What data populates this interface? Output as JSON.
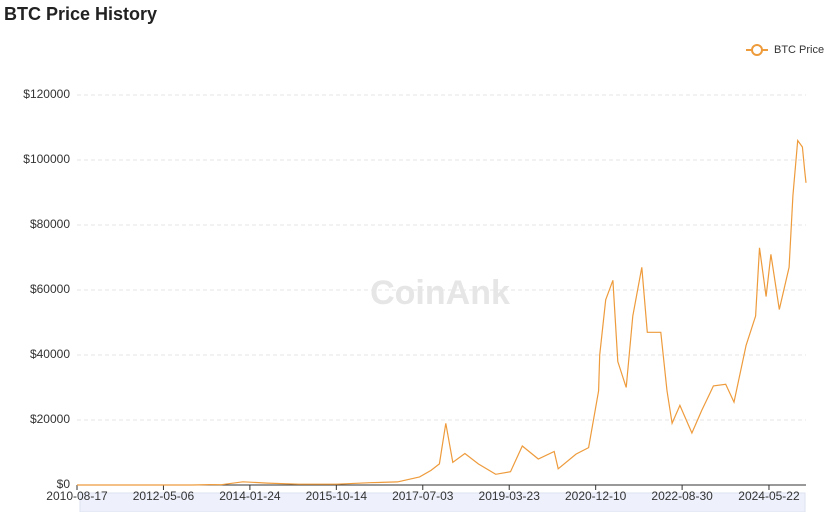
{
  "chart_data": {
    "type": "line",
    "title": "BTC Price History",
    "watermark": "CoinAnk",
    "legend": "top-right",
    "grid": true,
    "x": [
      "2010-08-17",
      "2011-06-08",
      "2011-12-01",
      "2012-06-01",
      "2012-12-01",
      "2013-04-10",
      "2013-07-01",
      "2013-12-04",
      "2014-06-01",
      "2015-01-14",
      "2015-10-14",
      "2016-06-15",
      "2016-12-31",
      "2017-06-10",
      "2017-09-01",
      "2017-11-01",
      "2017-12-17",
      "2018-02-06",
      "2018-05-05",
      "2018-08-10",
      "2018-12-15",
      "2019-04-01",
      "2019-06-26",
      "2019-10-20",
      "2020-02-13",
      "2020-03-13",
      "2020-07-20",
      "2020-10-20",
      "2020-12-31",
      "2021-01-08",
      "2021-02-21",
      "2021-04-14",
      "2021-05-20",
      "2021-07-20",
      "2021-09-06",
      "2021-11-10",
      "2021-12-20",
      "2022-03-28",
      "2022-05-12",
      "2022-06-18",
      "2022-08-14",
      "2022-11-09",
      "2023-01-20",
      "2023-03-18",
      "2023-04-14",
      "2023-07-13",
      "2023-09-11",
      "2023-12-08",
      "2024-02-15",
      "2024-03-14",
      "2024-05-01",
      "2024-06-05",
      "2024-08-05",
      "2024-10-15",
      "2024-11-12",
      "2024-12-17",
      "2025-01-20",
      "2025-02-05",
      "2025-02-15"
    ],
    "series": [
      {
        "name": "BTC Price",
        "color": "#ee9b3c",
        "values": [
          0.07,
          15,
          3,
          6,
          13,
          130,
          90,
          1000,
          600,
          250,
          250,
          700,
          960,
          2500,
          4500,
          6500,
          19000,
          7000,
          9700,
          6500,
          3300,
          4100,
          12000,
          8000,
          10300,
          5000,
          9500,
          11500,
          29000,
          40000,
          57000,
          63000,
          38000,
          30000,
          52000,
          67000,
          47000,
          47000,
          29000,
          19000,
          24500,
          16000,
          23000,
          28000,
          30500,
          31000,
          25500,
          43000,
          52000,
          73000,
          58000,
          71000,
          54000,
          67000,
          89000,
          106000,
          104000,
          97000,
          93000
        ]
      }
    ],
    "xlim": [
      "2010-08-17",
      "2025-02-15"
    ],
    "xticks": [
      "2010-08-17",
      "2012-05-06",
      "2014-01-24",
      "2015-10-14",
      "2017-07-03",
      "2019-03-23",
      "2020-12-10",
      "2022-08-30",
      "2024-05-22"
    ],
    "ylim": [
      0,
      120000
    ],
    "yticks": [
      {
        "value": 0,
        "label": "$0"
      },
      {
        "value": 20000,
        "label": "$20000"
      },
      {
        "value": 40000,
        "label": "$40000"
      },
      {
        "value": 60000,
        "label": "$60000"
      },
      {
        "value": 80000,
        "label": "$80000"
      },
      {
        "value": 100000,
        "label": "$100000"
      },
      {
        "value": 120000,
        "label": "$120000"
      }
    ]
  }
}
